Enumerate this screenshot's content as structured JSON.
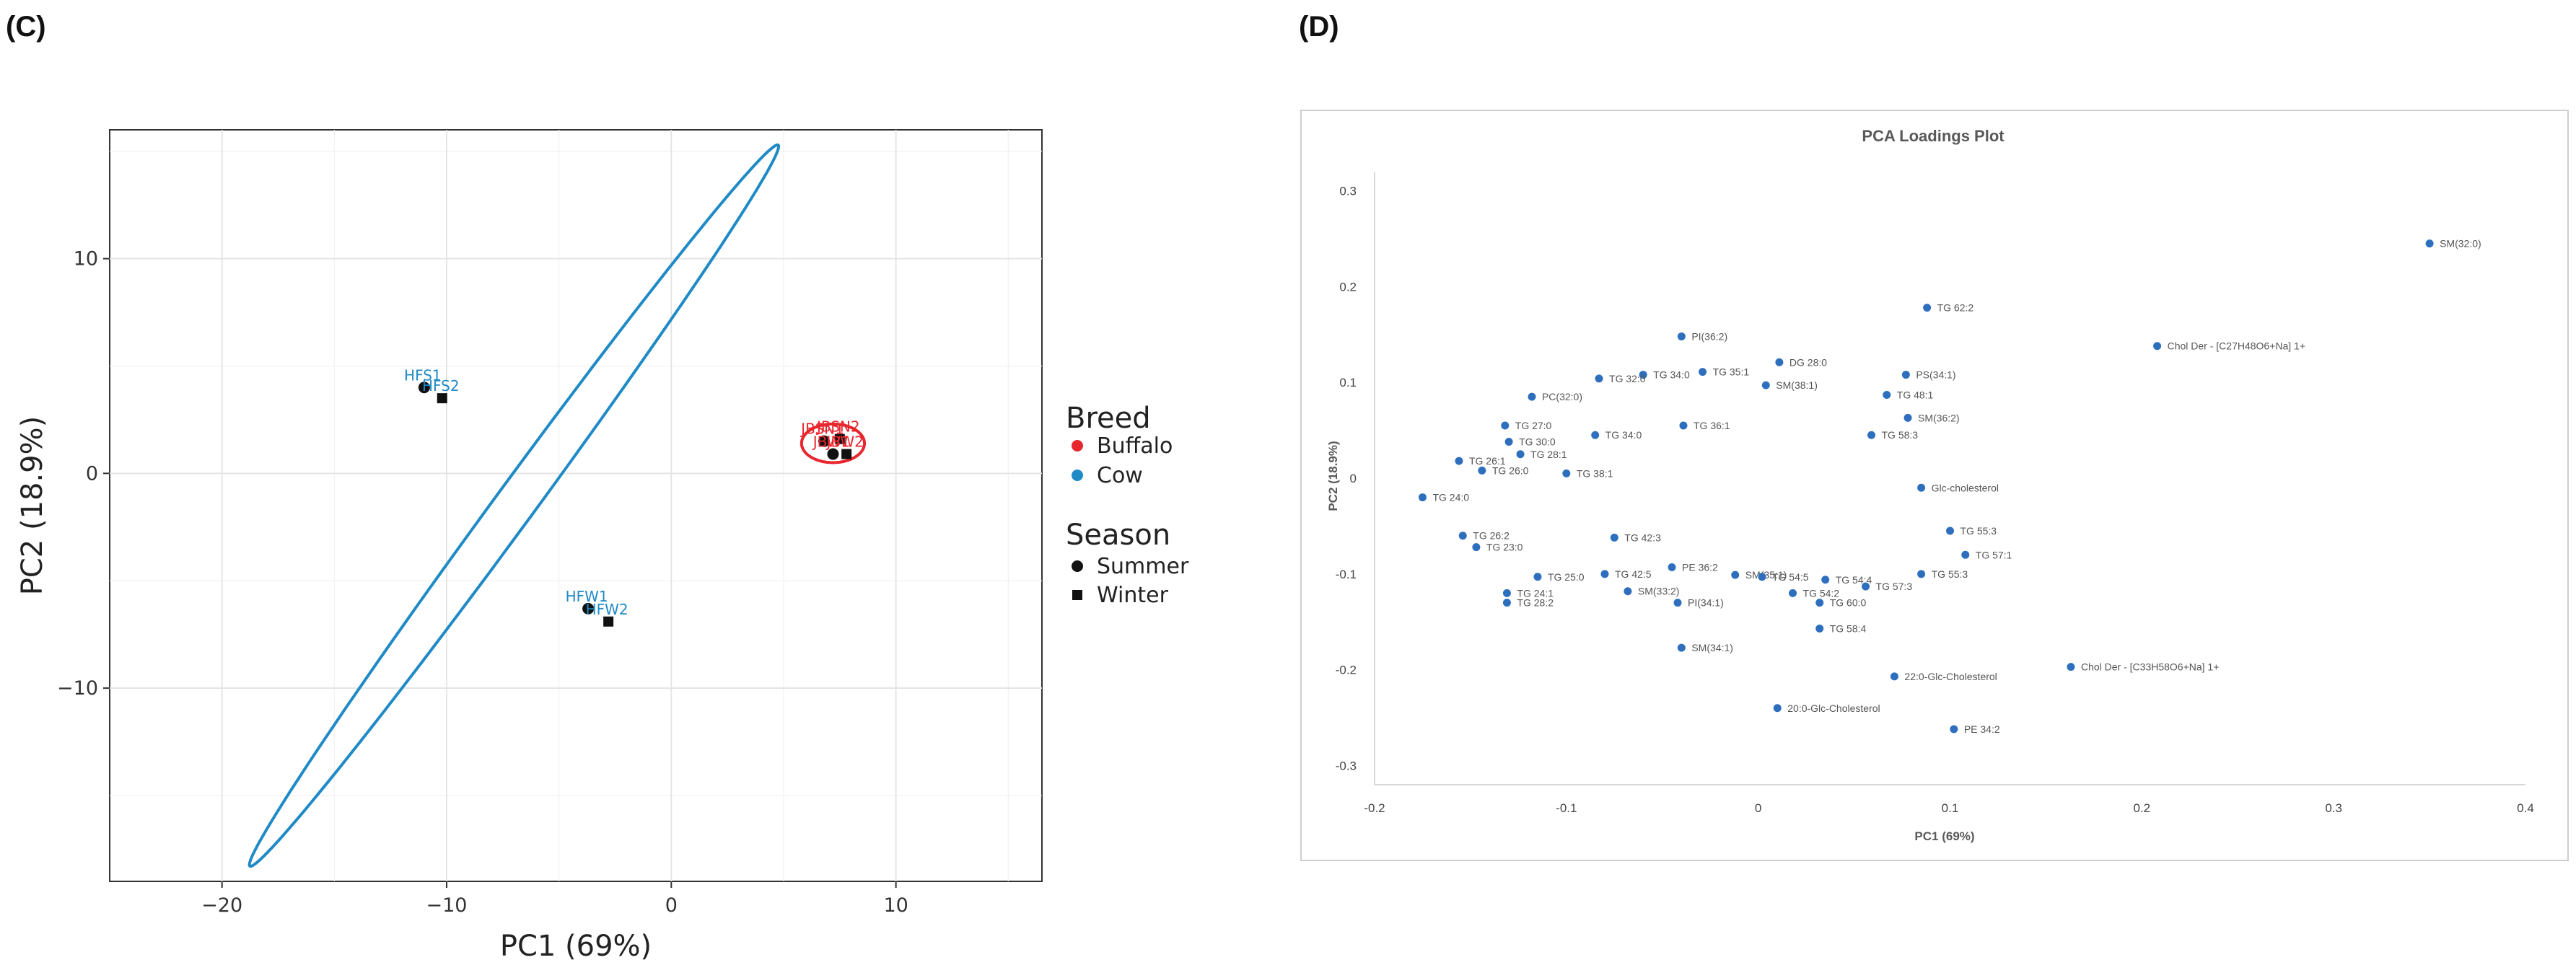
{
  "panels": {
    "c_letter": "(C)",
    "d_letter": "(D)"
  },
  "chart_data": [
    {
      "type": "scatter",
      "panel": "(C)",
      "title": "",
      "xlabel": "PC1 (69%)",
      "ylabel": "PC2 (18.9%)",
      "xlim": [
        -25,
        16.5
      ],
      "ylim": [
        -19,
        16
      ],
      "xticks": [
        -20,
        -10,
        0,
        10
      ],
      "yticks": [
        -10,
        0,
        10
      ],
      "grid": true,
      "series": [
        {
          "name": "Cow",
          "color": "#1f8ac6",
          "points": [
            {
              "x": -11.0,
              "y": 4.0,
              "season": "Summer",
              "label": "HFS1"
            },
            {
              "x": -10.2,
              "y": 3.5,
              "season": "Winter",
              "label": "HFS2"
            },
            {
              "x": -3.7,
              "y": -6.3,
              "season": "Summer",
              "label": "HFW1"
            },
            {
              "x": -2.8,
              "y": -6.9,
              "season": "Winter",
              "label": "HFW2"
            }
          ],
          "ellipse": {
            "cx": -7.0,
            "cy": -1.5,
            "rx": 20.5,
            "ry": 0.9,
            "angle": 55
          }
        },
        {
          "name": "Buffalo",
          "color": "#e8262e",
          "points": [
            {
              "x": 6.8,
              "y": 1.5,
              "season": "Summer",
              "label": "JBSN1"
            },
            {
              "x": 7.5,
              "y": 1.6,
              "season": "Winter",
              "label": "JBSN2"
            },
            {
              "x": 7.2,
              "y": 0.9,
              "season": "Summer",
              "label": "JBW1"
            },
            {
              "x": 7.8,
              "y": 0.9,
              "season": "Winter",
              "label": "JBW2"
            }
          ],
          "ellipse": {
            "cx": 7.2,
            "cy": 1.4,
            "rx": 1.4,
            "ry": 0.9,
            "angle": 0
          }
        }
      ],
      "legend": {
        "breed_title": "Breed",
        "breed": [
          {
            "label": "Buffalo",
            "color": "#e8262e"
          },
          {
            "label": "Cow",
            "color": "#1f8ac6"
          }
        ],
        "season_title": "Season",
        "season": [
          {
            "label": "Summer",
            "shape": "circle"
          },
          {
            "label": "Winter",
            "shape": "square"
          }
        ]
      }
    },
    {
      "type": "scatter",
      "panel": "(D)",
      "title": "PCA Loadings Plot",
      "xlabel": "PC1 (69%)",
      "ylabel": "PC2 (18.9%)",
      "xlim": [
        -0.2,
        0.4
      ],
      "ylim": [
        -0.32,
        0.32
      ],
      "xticks": [
        -0.2,
        -0.1,
        0,
        0.1,
        0.2,
        0.3,
        0.4
      ],
      "yticks": [
        -0.3,
        -0.2,
        -0.1,
        0,
        0.1,
        0.2,
        0.3
      ],
      "xticklabels": [
        "-0.2",
        "-0.1",
        "0",
        "0.1",
        "0.2",
        "0.3",
        "0.4"
      ],
      "yticklabels": [
        "-0.3",
        "-0.2",
        "-0.1",
        "0",
        "0.1",
        "0.2",
        "0.3"
      ],
      "point_color": "#2e6fbd",
      "points": [
        {
          "x": 0.35,
          "y": 0.245,
          "label": "SM(32:0)"
        },
        {
          "x": 0.088,
          "y": 0.178,
          "label": "TG 62:2"
        },
        {
          "x": 0.208,
          "y": 0.138,
          "label": "Chol Der - [C27H48O6+Na] 1+"
        },
        {
          "x": -0.04,
          "y": 0.148,
          "label": "PI(36:2)"
        },
        {
          "x": 0.011,
          "y": 0.121,
          "label": "DG 28:0"
        },
        {
          "x": 0.077,
          "y": 0.108,
          "label": "PS(34:1)"
        },
        {
          "x": -0.029,
          "y": 0.111,
          "label": "TG 35:1"
        },
        {
          "x": -0.06,
          "y": 0.108,
          "label": "TG 34:0"
        },
        {
          "x": 0.004,
          "y": 0.097,
          "label": "SM(38:1)"
        },
        {
          "x": -0.083,
          "y": 0.104,
          "label": "TG 32:0"
        },
        {
          "x": -0.118,
          "y": 0.085,
          "label": "PC(32:0)"
        },
        {
          "x": 0.067,
          "y": 0.087,
          "label": "TG 48:1"
        },
        {
          "x": 0.078,
          "y": 0.063,
          "label": "SM(36:2)"
        },
        {
          "x": -0.132,
          "y": 0.055,
          "label": "TG 27:0"
        },
        {
          "x": -0.039,
          "y": 0.055,
          "label": "TG 36:1"
        },
        {
          "x": -0.085,
          "y": 0.045,
          "label": "TG 34:0"
        },
        {
          "x": 0.059,
          "y": 0.045,
          "label": "TG 58:3"
        },
        {
          "x": -0.13,
          "y": 0.038,
          "label": "TG 30:0"
        },
        {
          "x": -0.124,
          "y": 0.025,
          "label": "TG 28:1"
        },
        {
          "x": -0.156,
          "y": 0.018,
          "label": "TG 26:1"
        },
        {
          "x": -0.144,
          "y": 0.008,
          "label": "TG 26:0"
        },
        {
          "x": -0.1,
          "y": 0.005,
          "label": "TG 38:1"
        },
        {
          "x": -0.175,
          "y": -0.02,
          "label": "TG 24:0"
        },
        {
          "x": 0.085,
          "y": -0.01,
          "label": "Glc-cholesterol"
        },
        {
          "x": -0.154,
          "y": -0.06,
          "label": "TG 26:2"
        },
        {
          "x": -0.147,
          "y": -0.072,
          "label": "TG 23:0"
        },
        {
          "x": -0.075,
          "y": -0.062,
          "label": "TG 42:3"
        },
        {
          "x": 0.1,
          "y": -0.055,
          "label": "TG 55:3"
        },
        {
          "x": 0.108,
          "y": -0.08,
          "label": "TG 57:1"
        },
        {
          "x": -0.115,
          "y": -0.103,
          "label": "TG 25:0"
        },
        {
          "x": -0.08,
          "y": -0.1,
          "label": "TG 42:5"
        },
        {
          "x": -0.045,
          "y": -0.093,
          "label": "PE 36:2"
        },
        {
          "x": -0.012,
          "y": -0.101,
          "label": "SM(35:1)"
        },
        {
          "x": 0.002,
          "y": -0.103,
          "label": "TG 54:5"
        },
        {
          "x": 0.035,
          "y": -0.106,
          "label": "TG 54:4"
        },
        {
          "x": 0.085,
          "y": -0.1,
          "label": "TG 55:3"
        },
        {
          "x": 0.056,
          "y": -0.113,
          "label": "TG 57:3"
        },
        {
          "x": -0.131,
          "y": -0.12,
          "label": "TG 24:1"
        },
        {
          "x": -0.068,
          "y": -0.118,
          "label": "SM(33:2)"
        },
        {
          "x": 0.018,
          "y": -0.12,
          "label": "TG 54:2"
        },
        {
          "x": -0.131,
          "y": -0.13,
          "label": "TG 28:2"
        },
        {
          "x": -0.042,
          "y": -0.13,
          "label": "PI(34:1)"
        },
        {
          "x": 0.032,
          "y": -0.13,
          "label": "TG 60:0"
        },
        {
          "x": 0.032,
          "y": -0.157,
          "label": "TG 58:4"
        },
        {
          "x": -0.04,
          "y": -0.177,
          "label": "SM(34:1)"
        },
        {
          "x": 0.071,
          "y": -0.207,
          "label": "22:0-Glc-Cholesterol"
        },
        {
          "x": 0.163,
          "y": -0.197,
          "label": "Chol Der - [C33H58O6+Na] 1+"
        },
        {
          "x": 0.01,
          "y": -0.24,
          "label": "20:0-Glc-Cholesterol"
        },
        {
          "x": 0.102,
          "y": -0.262,
          "label": "PE 34:2"
        }
      ]
    }
  ]
}
